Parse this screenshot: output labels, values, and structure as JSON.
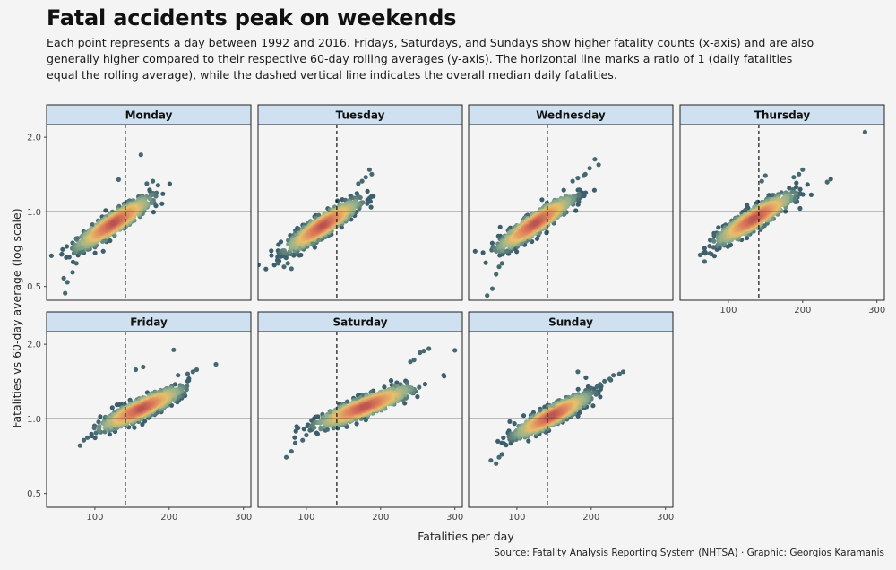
{
  "header": {
    "title": "Fatal accidents peak on weekends",
    "subtitle": "Each point represents a day between 1992 and 2016. Fridays, Saturdays, and Sundays show higher fatality counts (x-axis) and are also generally higher compared to their respective 60-day rolling averages (y-axis). The horizontal line marks a ratio of 1 (daily fatalities equal the rolling average), while the dashed vertical line indicates the overall median daily fatalities."
  },
  "caption": "Source: Fatality Analysis Reporting System (NHTSA) · Graphic: Georgios Karamanis",
  "colors": {
    "background": "#f4f4f4",
    "strip": "#cfe0f1",
    "point_low_density": "#3d5f6c",
    "point_mid": "#8fb08f",
    "point_warm": "#e8c06a",
    "point_high_density": "#b9504f"
  },
  "chart_data": {
    "type": "scatter",
    "layout": "facet_wrap",
    "xlabel": "Fatalities per day",
    "ylabel": "Fatalities vs 60-day average (log scale)",
    "xlim": [
      35,
      310
    ],
    "ylim": [
      0.44,
      2.25
    ],
    "y_scale": "log",
    "x_ticks": [
      100,
      200,
      300
    ],
    "x_tick_labels": [
      "100",
      "200",
      "300"
    ],
    "y_ticks": [
      0.5,
      1.0,
      2.0
    ],
    "y_tick_labels": [
      "0.5",
      "1.0",
      "2.0"
    ],
    "reference_lines": {
      "horizontal_ratio": 1.0,
      "vertical_median": 141
    },
    "panels": [
      {
        "name": "Monday",
        "center": [
          125,
          0.9
        ],
        "spread": 24,
        "slope": 0.0043,
        "jitter": 0.05,
        "outliers": [
          [
            162,
            1.7
          ],
          [
            132,
            1.35
          ],
          [
            178,
            1.33
          ],
          [
            170,
            1.3
          ],
          [
            185,
            1.28
          ],
          [
            60,
            0.47
          ],
          [
            63,
            0.52
          ],
          [
            58,
            0.54
          ],
          [
            70,
            0.57
          ],
          [
            75,
            0.62
          ]
        ]
      },
      {
        "name": "Tuesday",
        "center": [
          122,
          0.88
        ],
        "spread": 23,
        "slope": 0.0043,
        "jitter": 0.05,
        "outliers": [
          [
            185,
            1.48
          ],
          [
            188,
            1.42
          ],
          [
            180,
            1.38
          ],
          [
            175,
            1.33
          ],
          [
            170,
            1.3
          ],
          [
            62,
            0.62
          ],
          [
            70,
            0.6
          ],
          [
            75,
            0.62
          ],
          [
            80,
            0.59
          ]
        ]
      },
      {
        "name": "Wednesday",
        "center": [
          125,
          0.9
        ],
        "spread": 24,
        "slope": 0.0045,
        "jitter": 0.05,
        "outliers": [
          [
            205,
            1.63
          ],
          [
            210,
            1.55
          ],
          [
            198,
            1.5
          ],
          [
            192,
            1.42
          ],
          [
            190,
            1.4
          ],
          [
            182,
            1.37
          ],
          [
            175,
            1.33
          ],
          [
            60,
            0.46
          ],
          [
            67,
            0.49
          ],
          [
            72,
            0.56
          ],
          [
            76,
            0.6
          ],
          [
            80,
            0.62
          ]
        ]
      },
      {
        "name": "Thursday",
        "center": [
          135,
          0.94
        ],
        "spread": 24,
        "slope": 0.004,
        "jitter": 0.05,
        "outliers": [
          [
            284,
            2.1
          ],
          [
            233,
            1.32
          ],
          [
            200,
            1.48
          ],
          [
            195,
            1.42
          ],
          [
            188,
            1.38
          ],
          [
            150,
            1.4
          ],
          [
            145,
            1.33
          ],
          [
            68,
            0.63
          ],
          [
            62,
            0.67
          ],
          [
            75,
            0.68
          ],
          [
            80,
            0.72
          ]
        ]
      },
      {
        "name": "Friday",
        "center": [
          162,
          1.1
        ],
        "spread": 26,
        "slope": 0.0031,
        "jitter": 0.045,
        "outliers": [
          [
            263,
            1.66
          ],
          [
            237,
            1.58
          ],
          [
            232,
            1.55
          ],
          [
            225,
            1.52
          ],
          [
            212,
            1.5
          ],
          [
            206,
            1.9
          ],
          [
            165,
            1.62
          ],
          [
            155,
            1.58
          ],
          [
            80,
            0.78
          ],
          [
            85,
            0.82
          ],
          [
            90,
            0.84
          ]
        ]
      },
      {
        "name": "Saturday",
        "center": [
          178,
          1.12
        ],
        "spread": 30,
        "slope": 0.0026,
        "jitter": 0.045,
        "outliers": [
          [
            300,
            1.89
          ],
          [
            265,
            1.92
          ],
          [
            258,
            1.88
          ],
          [
            253,
            1.85
          ],
          [
            245,
            1.73
          ],
          [
            240,
            1.7
          ],
          [
            73,
            0.7
          ],
          [
            80,
            0.74
          ],
          [
            85,
            0.8
          ],
          [
            95,
            0.82
          ],
          [
            100,
            0.86
          ],
          [
            105,
            0.9
          ]
        ]
      },
      {
        "name": "Sunday",
        "center": [
          147,
          1.03
        ],
        "spread": 24,
        "slope": 0.0035,
        "jitter": 0.045,
        "outliers": [
          [
            243,
            1.55
          ],
          [
            238,
            1.52
          ],
          [
            230,
            1.5
          ],
          [
            225,
            1.45
          ],
          [
            218,
            1.42
          ],
          [
            212,
            1.38
          ],
          [
            208,
            1.35
          ],
          [
            200,
            1.33
          ],
          [
            182,
            1.55
          ],
          [
            65,
            0.68
          ],
          [
            72,
            0.66
          ],
          [
            76,
            0.7
          ],
          [
            80,
            0.72
          ]
        ]
      }
    ]
  }
}
